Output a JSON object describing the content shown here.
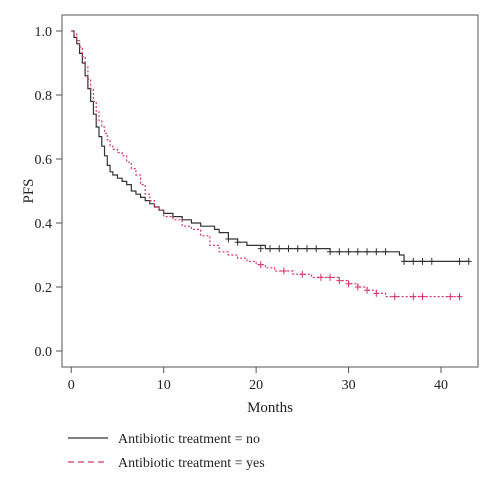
{
  "chart_data": {
    "type": "line",
    "title": "",
    "xlabel": "Months",
    "ylabel": "PFS",
    "xlim": [
      -1,
      44
    ],
    "ylim": [
      -0.05,
      1.05
    ],
    "x_ticks": [
      0,
      10,
      20,
      30,
      40
    ],
    "x_tick_labels": [
      "0",
      "10",
      "20",
      "30",
      "40"
    ],
    "y_ticks": [
      0.0,
      0.2,
      0.4,
      0.6,
      0.8,
      1.0
    ],
    "y_tick_labels": [
      "0.0",
      "0.2",
      "0.4",
      "0.6",
      "0.8",
      "1.0"
    ],
    "grid": false,
    "legend_position": "bottom-left",
    "series": [
      {
        "name": "Antibiotic treatment = no",
        "color": "#333333",
        "line_style": "solid",
        "x": [
          0,
          0.3,
          0.6,
          0.9,
          1.2,
          1.5,
          1.8,
          2.1,
          2.4,
          2.7,
          3.0,
          3.3,
          3.6,
          3.9,
          4.2,
          4.5,
          5.0,
          5.5,
          6.0,
          6.5,
          7.0,
          7.5,
          8.0,
          8.5,
          9.0,
          9.5,
          10.0,
          10.5,
          11.0,
          11.5,
          12.0,
          13.0,
          14.0,
          15.0,
          15.5,
          16.0,
          17.0,
          18.0,
          19.0,
          20.0,
          21.0,
          23.0,
          25.0,
          27.0,
          28.0,
          30.0,
          33.0,
          35.0,
          35.5,
          36.0,
          43.0
        ],
        "y": [
          1.0,
          0.98,
          0.96,
          0.93,
          0.9,
          0.86,
          0.82,
          0.78,
          0.74,
          0.7,
          0.67,
          0.64,
          0.61,
          0.58,
          0.56,
          0.55,
          0.54,
          0.53,
          0.52,
          0.5,
          0.49,
          0.48,
          0.47,
          0.46,
          0.45,
          0.44,
          0.43,
          0.43,
          0.42,
          0.42,
          0.41,
          0.4,
          0.39,
          0.39,
          0.38,
          0.37,
          0.35,
          0.34,
          0.33,
          0.33,
          0.32,
          0.32,
          0.32,
          0.32,
          0.31,
          0.31,
          0.31,
          0.31,
          0.3,
          0.28,
          0.28
        ],
        "censored": [
          [
            17,
            0.35
          ],
          [
            18,
            0.34
          ],
          [
            20.5,
            0.32
          ],
          [
            21.5,
            0.32
          ],
          [
            22.5,
            0.32
          ],
          [
            23.5,
            0.32
          ],
          [
            24.5,
            0.32
          ],
          [
            25.5,
            0.32
          ],
          [
            26.5,
            0.32
          ],
          [
            28,
            0.31
          ],
          [
            29,
            0.31
          ],
          [
            30,
            0.31
          ],
          [
            31,
            0.31
          ],
          [
            32,
            0.31
          ],
          [
            33,
            0.31
          ],
          [
            34,
            0.31
          ],
          [
            36,
            0.28
          ],
          [
            37,
            0.28
          ],
          [
            38,
            0.28
          ],
          [
            39,
            0.28
          ],
          [
            42,
            0.28
          ],
          [
            43,
            0.28
          ]
        ]
      },
      {
        "name": "Antibiotic treatment = yes",
        "color": "#d6336c",
        "line_style": "dashed",
        "x": [
          0,
          0.3,
          0.6,
          0.9,
          1.2,
          1.5,
          1.8,
          2.1,
          2.4,
          2.7,
          3.0,
          3.3,
          3.6,
          3.9,
          4.2,
          4.5,
          5.0,
          5.5,
          6.0,
          6.5,
          7.0,
          7.5,
          8.0,
          8.5,
          9.0,
          9.5,
          10.0,
          11.0,
          12.0,
          13.0,
          14.0,
          15.0,
          16.0,
          17.0,
          18.0,
          19.0,
          20.0,
          21.0,
          22.0,
          23.0,
          24.0,
          25.0,
          26.0,
          27.0,
          28.0,
          29.0,
          30.0,
          31.0,
          32.0,
          33.0,
          34.0,
          35.0,
          36.0,
          38.0,
          42.0
        ],
        "y": [
          1.0,
          0.99,
          0.97,
          0.95,
          0.92,
          0.89,
          0.85,
          0.82,
          0.78,
          0.75,
          0.72,
          0.7,
          0.68,
          0.66,
          0.64,
          0.63,
          0.62,
          0.61,
          0.59,
          0.57,
          0.55,
          0.52,
          0.49,
          0.47,
          0.45,
          0.44,
          0.42,
          0.41,
          0.39,
          0.38,
          0.36,
          0.33,
          0.31,
          0.3,
          0.29,
          0.28,
          0.27,
          0.26,
          0.25,
          0.25,
          0.24,
          0.24,
          0.23,
          0.23,
          0.23,
          0.22,
          0.21,
          0.2,
          0.19,
          0.18,
          0.17,
          0.17,
          0.17,
          0.17,
          0.17
        ],
        "censored": [
          [
            20.5,
            0.27
          ],
          [
            23,
            0.25
          ],
          [
            25,
            0.24
          ],
          [
            27,
            0.23
          ],
          [
            28,
            0.23
          ],
          [
            29,
            0.22
          ],
          [
            30,
            0.21
          ],
          [
            31,
            0.2
          ],
          [
            32,
            0.19
          ],
          [
            33,
            0.18
          ],
          [
            35,
            0.17
          ],
          [
            37,
            0.17
          ],
          [
            38,
            0.17
          ],
          [
            41,
            0.17
          ],
          [
            42,
            0.17
          ]
        ]
      }
    ]
  }
}
